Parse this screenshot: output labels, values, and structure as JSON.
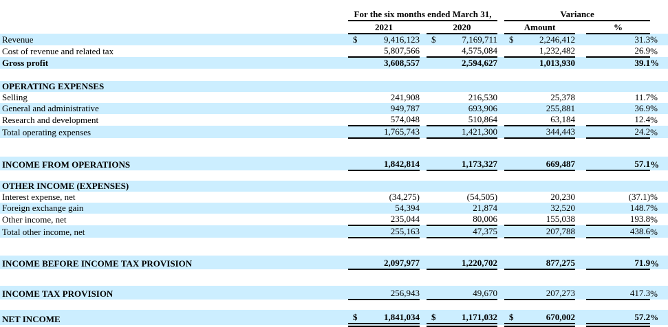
{
  "table": {
    "colors": {
      "row_highlight": "#cceeff",
      "text": "#000000",
      "rule": "#000000"
    },
    "header": {
      "group_period": "For the six months ended March 31,",
      "group_variance": "Variance",
      "col_2021": "2021",
      "col_2020": "2020",
      "col_amount": "Amount",
      "col_pct": "%"
    },
    "rows": [
      {
        "label": "Revenue",
        "highlight": true,
        "label_bold": false,
        "value_bold": false,
        "dollar": true,
        "v2021": "9,416,123",
        "v2020": "7,169,711",
        "amount": "2,246,412",
        "pct": "31.3",
        "pct_sign": "%",
        "rule": "none"
      },
      {
        "label": "Cost of revenue and related tax",
        "highlight": false,
        "label_bold": false,
        "value_bold": false,
        "dollar": false,
        "v2021": "5,807,566",
        "v2020": "4,575,084",
        "amount": "1,232,482",
        "pct": "26.9",
        "pct_sign": "%",
        "rule": "single"
      },
      {
        "label": "Gross profit",
        "highlight": true,
        "label_bold": true,
        "value_bold": true,
        "dollar": false,
        "v2021": "3,608,557",
        "v2020": "2,594,627",
        "amount": "1,013,930",
        "pct": "39.1",
        "pct_sign": "%",
        "rule": "none"
      },
      {
        "spacer": true,
        "height": 17
      },
      {
        "label": "OPERATING EXPENSES",
        "highlight": true,
        "label_bold": true,
        "value_bold": false,
        "dollar": false,
        "v2021": "",
        "v2020": "",
        "amount": "",
        "pct": "",
        "pct_sign": "",
        "rule": "none"
      },
      {
        "label": "Selling",
        "highlight": false,
        "label_bold": false,
        "value_bold": false,
        "dollar": false,
        "v2021": "241,908",
        "v2020": "216,530",
        "amount": "25,378",
        "pct": "11.7",
        "pct_sign": "%",
        "rule": "none"
      },
      {
        "label": "General and administrative",
        "highlight": true,
        "label_bold": false,
        "value_bold": false,
        "dollar": false,
        "v2021": "949,787",
        "v2020": "693,906",
        "amount": "255,881",
        "pct": "36.9",
        "pct_sign": "%",
        "rule": "none"
      },
      {
        "label": "Research and development",
        "highlight": false,
        "label_bold": false,
        "value_bold": false,
        "dollar": false,
        "v2021": "574,048",
        "v2020": "510,864",
        "amount": "63,184",
        "pct": "12.4",
        "pct_sign": "%",
        "rule": "single"
      },
      {
        "label": "Total operating expenses",
        "highlight": true,
        "label_bold": false,
        "value_bold": false,
        "dollar": false,
        "v2021": "1,765,743",
        "v2020": "1,421,300",
        "amount": "344,443",
        "pct": "24.2",
        "pct_sign": "%",
        "rule": "single"
      },
      {
        "spacer": true,
        "height": 25
      },
      {
        "label": "INCOME FROM OPERATIONS",
        "highlight": true,
        "label_bold": true,
        "value_bold": true,
        "dollar": false,
        "tall": true,
        "v2021": "1,842,814",
        "v2020": "1,173,327",
        "amount": "669,487",
        "pct": "57.1",
        "pct_sign": "%",
        "rule": "single"
      },
      {
        "spacer": true,
        "height": 13
      },
      {
        "label": "OTHER INCOME (EXPENSES)",
        "highlight": true,
        "label_bold": true,
        "value_bold": false,
        "dollar": false,
        "v2021": "",
        "v2020": "",
        "amount": "",
        "pct": "",
        "pct_sign": "",
        "rule": "none"
      },
      {
        "label": "Interest expense, net",
        "highlight": false,
        "label_bold": false,
        "value_bold": false,
        "dollar": false,
        "v2021": "(34,275)",
        "v2020": "(54,505)",
        "amount": "20,230",
        "pct": "(37.1)",
        "pct_sign": "%",
        "rule": "none"
      },
      {
        "label": "Foreign exchange gain",
        "highlight": true,
        "label_bold": false,
        "value_bold": false,
        "dollar": false,
        "v2021": "54,394",
        "v2020": "21,874",
        "amount": "32,520",
        "pct": "148.7",
        "pct_sign": "%",
        "rule": "none"
      },
      {
        "label": "Other income, net",
        "highlight": false,
        "label_bold": false,
        "value_bold": false,
        "dollar": false,
        "v2021": "235,044",
        "v2020": "80,006",
        "amount": "155,038",
        "pct": "193.8",
        "pct_sign": "%",
        "rule": "single"
      },
      {
        "label": "Total other income, net",
        "highlight": true,
        "label_bold": false,
        "value_bold": false,
        "dollar": false,
        "v2021": "255,163",
        "v2020": "47,375",
        "amount": "207,788",
        "pct": "438.6",
        "pct_sign": "%",
        "rule": "single"
      },
      {
        "spacer": true,
        "height": 24
      },
      {
        "label": "INCOME BEFORE INCOME TAX PROVISION",
        "highlight": true,
        "label_bold": true,
        "value_bold": true,
        "dollar": false,
        "tall": true,
        "v2021": "2,097,977",
        "v2020": "1,220,702",
        "amount": "877,275",
        "pct": "71.9",
        "pct_sign": "%",
        "rule": "single"
      },
      {
        "spacer": true,
        "height": 22
      },
      {
        "label": "INCOME TAX PROVISION",
        "highlight": true,
        "label_bold": true,
        "value_bold": false,
        "dollar": false,
        "tall": true,
        "v2021": "256,943",
        "v2020": "49,670",
        "amount": "207,273",
        "pct": "417.3",
        "pct_sign": "%",
        "rule": "single"
      },
      {
        "spacer": true,
        "height": 13
      },
      {
        "label": "NET INCOME",
        "highlight": true,
        "label_bold": true,
        "value_bold": true,
        "dollar": true,
        "tall": true,
        "pct_raised": true,
        "v2021": "1,841,034",
        "v2020": "1,171,032",
        "amount": "670,002",
        "pct": "57.2",
        "pct_sign": "%",
        "rule": "double"
      }
    ]
  }
}
